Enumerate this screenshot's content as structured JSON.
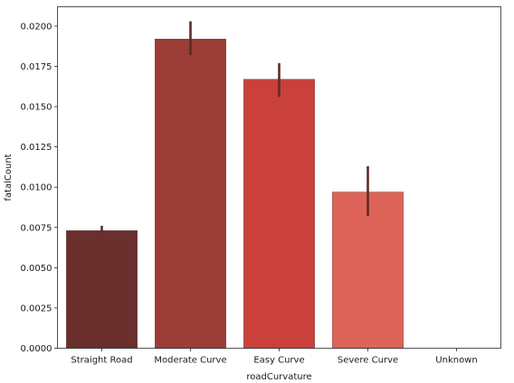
{
  "chart_data": {
    "type": "bar",
    "xlabel": "roadCurvature",
    "ylabel": "fatalCount",
    "ylim": [
      0,
      0.0212
    ],
    "yticks": [
      0.0,
      0.0025,
      0.005,
      0.0075,
      0.01,
      0.0125,
      0.015,
      0.0175,
      0.02
    ],
    "ytick_labels": [
      "0.0000",
      "0.0025",
      "0.0050",
      "0.0075",
      "0.0100",
      "0.0125",
      "0.0150",
      "0.0175",
      "0.0200"
    ],
    "grid": false,
    "categories": [
      "Straight Road",
      "Moderate Curve",
      "Easy Curve",
      "Severe Curve",
      "Unknown"
    ],
    "values": [
      0.0073,
      0.0192,
      0.0167,
      0.0097,
      0.0
    ],
    "error_bars": [
      {
        "low": 0.0071,
        "high": 0.0076
      },
      {
        "low": 0.0182,
        "high": 0.0203
      },
      {
        "low": 0.0156,
        "high": 0.0177
      },
      {
        "low": 0.0082,
        "high": 0.0113
      },
      null
    ],
    "colors": [
      "#6b302d",
      "#9b3d36",
      "#c9413a",
      "#dd6358",
      "#e88a80"
    ],
    "error_color": "#5e2b29"
  }
}
